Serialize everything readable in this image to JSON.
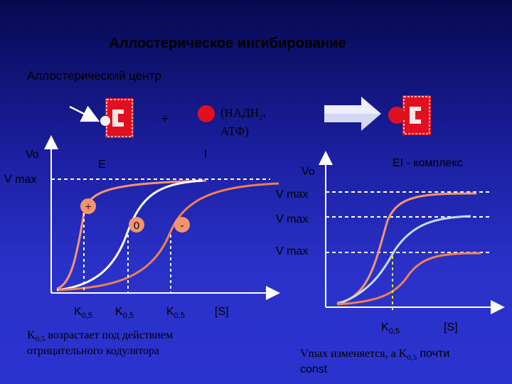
{
  "title": "Аллостерическое ингибирование",
  "allosteric_center_label": "Аллостерический центр",
  "plus_sign": "+",
  "inhibitor_label": {
    "line1_pre": "(НАДН",
    "line1_sub": "2",
    "line1_post": ",",
    "line2": "АТФ)"
  },
  "left_chart": {
    "ylabel": "Vo",
    "vmax_label": "V max",
    "curve_labels": {
      "E": "E",
      "I": "I",
      "plus": "+",
      "zero": "0",
      "minus": "-"
    },
    "k_labels": [
      {
        "pre": "K",
        "sub": "0,5"
      },
      {
        "pre": "K",
        "sub": "0,5"
      },
      {
        "pre": "K",
        "sub": "0,5"
      }
    ],
    "xlabel": "[S]",
    "caption_line1_pre": "K",
    "caption_line1_sub": "0,5",
    "caption_line1_post": " возрастает под действием",
    "caption_line2": "отрицательного кодулятора"
  },
  "right_chart": {
    "ylabel": "Vo",
    "complex_label": "EI - комплекс",
    "vmax_labels": [
      "V max",
      "V max",
      "V max"
    ],
    "k_label": {
      "pre": "K",
      "sub": "0,5"
    },
    "xlabel": "[S]",
    "caption_line1_pre": "Vmax изменяется, а K",
    "caption_line1_sub": "0,5",
    "caption_line1_post": " почти",
    "caption_line2": "const"
  },
  "colors": {
    "enzyme_red": "#e01020",
    "activated_curve": "#f4946f",
    "normal_curve": "#ffffff",
    "inhibited_curve": "#f08050",
    "right_curve_light": "#c8d8f0",
    "dash_white": "#ffffff",
    "dash_yellow": "#f0e020"
  }
}
